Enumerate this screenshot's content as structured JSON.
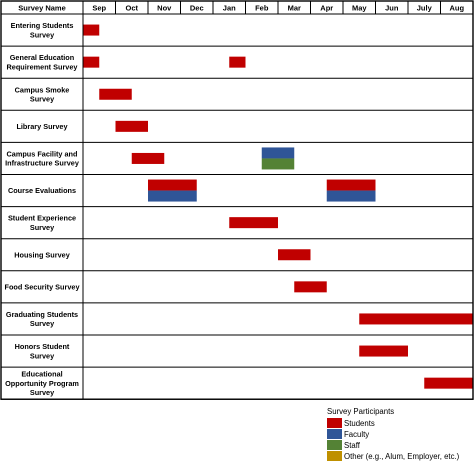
{
  "chart_data": {
    "type": "gantt",
    "header": "Survey Name",
    "months": [
      "Sep",
      "Oct",
      "Nov",
      "Dec",
      "Jan",
      "Feb",
      "Mar",
      "Apr",
      "May",
      "Jun",
      "July",
      "Aug"
    ],
    "surveys": [
      {
        "name": [
          "Entering Students",
          "Survey"
        ],
        "bars": [
          {
            "start": 0,
            "end": 0.5,
            "participants": [
              "Students"
            ]
          }
        ]
      },
      {
        "name": [
          "General Education",
          "Requirement Survey"
        ],
        "bars": [
          {
            "start": 0,
            "end": 0.5,
            "participants": [
              "Students"
            ]
          },
          {
            "start": 4.5,
            "end": 5,
            "participants": [
              "Students"
            ]
          }
        ]
      },
      {
        "name": [
          "Campus Smoke",
          "Survey"
        ],
        "bars": [
          {
            "start": 0.5,
            "end": 1.5,
            "participants": [
              "Students"
            ]
          }
        ]
      },
      {
        "name": [
          "Library Survey"
        ],
        "bars": [
          {
            "start": 1,
            "end": 2,
            "participants": [
              "Students"
            ]
          }
        ]
      },
      {
        "name": [
          "Campus Facility and",
          "Infrastructure Survey"
        ],
        "bars": [
          {
            "start": 1.5,
            "end": 2.5,
            "participants": [
              "Students"
            ]
          },
          {
            "start": 5.5,
            "end": 6.5,
            "participants": [
              "Faculty",
              "Staff"
            ]
          }
        ]
      },
      {
        "name": [
          "Course Evaluations"
        ],
        "bars": [
          {
            "start": 2,
            "end": 3.5,
            "participants": [
              "Students",
              "Faculty"
            ]
          },
          {
            "start": 7.5,
            "end": 9,
            "participants": [
              "Students",
              "Faculty"
            ]
          }
        ]
      },
      {
        "name": [
          "Student Experience",
          "Survey"
        ],
        "bars": [
          {
            "start": 4.5,
            "end": 6,
            "participants": [
              "Students"
            ]
          }
        ]
      },
      {
        "name": [
          "Housing Survey"
        ],
        "bars": [
          {
            "start": 6,
            "end": 7,
            "participants": [
              "Students"
            ]
          }
        ]
      },
      {
        "name": [
          "Food Security Survey"
        ],
        "bars": [
          {
            "start": 6.5,
            "end": 7.5,
            "participants": [
              "Students"
            ]
          }
        ]
      },
      {
        "name": [
          "Graduating Students",
          "Survey"
        ],
        "bars": [
          {
            "start": 8.5,
            "end": 12,
            "participants": [
              "Students"
            ]
          }
        ]
      },
      {
        "name": [
          "Honors Student",
          "Survey"
        ],
        "bars": [
          {
            "start": 8.5,
            "end": 10,
            "participants": [
              "Students"
            ]
          }
        ]
      },
      {
        "name": [
          "Educational",
          "Opportunity Program",
          "Survey"
        ],
        "bars": [
          {
            "start": 10.5,
            "end": 12,
            "participants": [
              "Students"
            ]
          }
        ]
      }
    ],
    "legend": {
      "title": "Survey Participants",
      "items": [
        {
          "label": "Students",
          "color": "#c00000"
        },
        {
          "label": "Faculty",
          "color": "#2f5597"
        },
        {
          "label": "Staff",
          "color": "#548235"
        },
        {
          "label": "Other (e.g., Alum, Employer, etc.)",
          "color": "#bf9000"
        }
      ]
    }
  }
}
